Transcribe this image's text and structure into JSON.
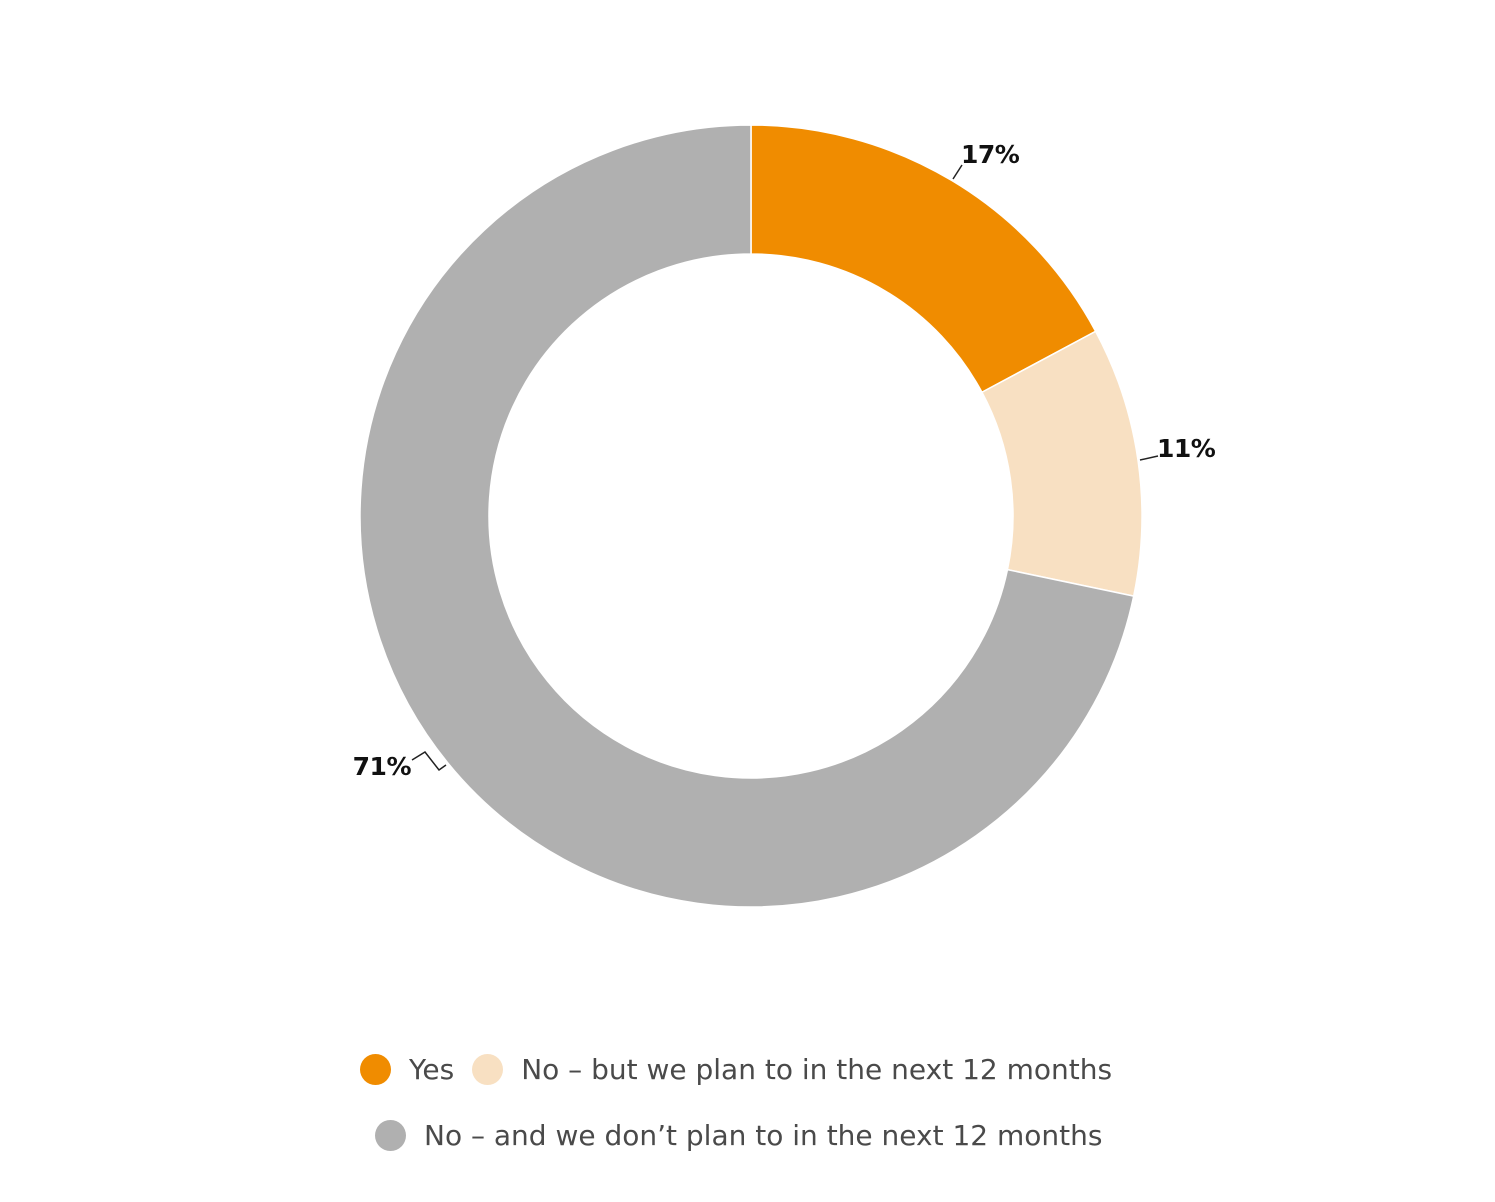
{
  "chart_data": {
    "type": "pie",
    "variant": "donut",
    "title": "",
    "categories": [
      "Yes",
      "No – but we plan to in the next 12 months",
      "No – and we don’t plan to in the next 12 months"
    ],
    "values": [
      17,
      11,
      71
    ],
    "data_labels": [
      "17%",
      "11%",
      "71%"
    ],
    "colors": [
      "#F08C00",
      "#F8E0C2",
      "#B0B0B0"
    ],
    "legend_position": "bottom"
  },
  "legend": {
    "items": [
      {
        "label": "Yes",
        "color": "#F08C00"
      },
      {
        "label": "No – but we plan to in the next 12 months",
        "color": "#F8E0C2"
      },
      {
        "label": "No – and we don’t plan to in the next 12 months",
        "color": "#B0B0B0"
      }
    ]
  }
}
